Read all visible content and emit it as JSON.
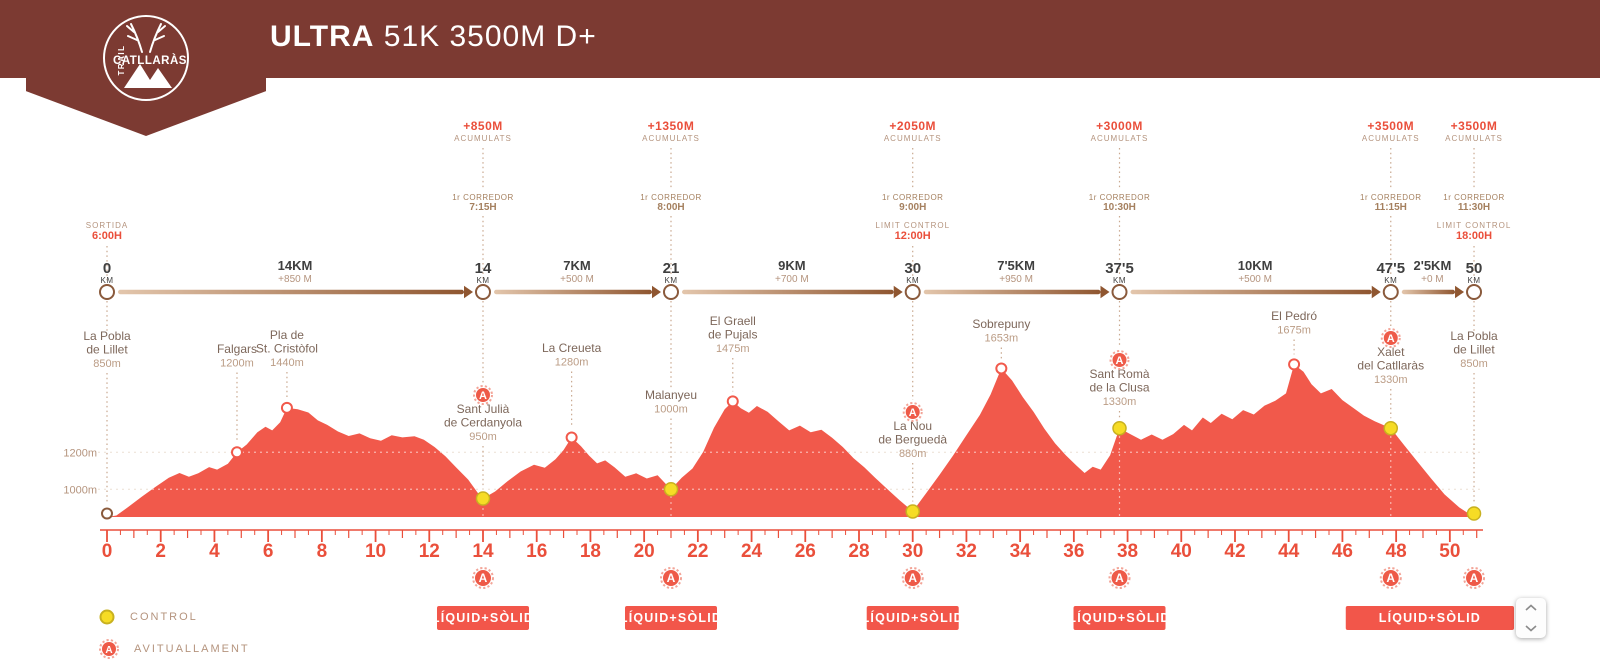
{
  "header": {
    "title_bold": "ULTRA",
    "title_rest": "51K 3500M D+",
    "logo": {
      "top": "TRAIL",
      "name": "CATLLARÀS"
    }
  },
  "icons": {
    "aid_letter": "A"
  },
  "legend": {
    "control": "CONTROL",
    "aid": "AVITUALLAMENT"
  },
  "aid_box_label": "LÍQUID+SÒLID",
  "colors": {
    "header_bg": "#7c3a32",
    "profile": "#f1594b",
    "accent": "#ea4f3b",
    "tan": "#b5947e",
    "brown": "#a5805f",
    "name_text": "#7d675a",
    "elev_text": "#bb9c85",
    "dark": "#3f3f3f",
    "dotted": "#c9a88f",
    "yellow": "#f6dc25",
    "yellow_dark": "#c8b120",
    "badge": "#ee5a48",
    "badge_ring": "#f3a497",
    "arrow_light": "#e3c6ac",
    "arrow_dark": "#8f5630",
    "circle_stroke": "#8a5a3c",
    "grid": "#ecdfd4",
    "box": "#f2564a"
  },
  "chart_data": {
    "type": "area",
    "title": "ULTRA 51K 3500M D+",
    "x_unit": "km",
    "y_unit": "m",
    "x_range": [
      0,
      51
    ],
    "ylim": [
      850,
      1700
    ],
    "xticks_interval": 2,
    "yticks": [
      {
        "label": "1200m",
        "value": 1200
      },
      {
        "label": "1000m",
        "value": 1000
      }
    ],
    "labels": {
      "acumulats": "ACUMULATS",
      "runner": "1r CORREDOR",
      "km": "KM"
    },
    "checkpoints": [
      {
        "km_label": "0",
        "km": 0,
        "control": {
          "label": "SORTIDA",
          "time": "6:00H"
        }
      },
      {
        "km_label": "14",
        "km": 14,
        "acumulated": "+850M",
        "runner_time": "7:15H"
      },
      {
        "km_label": "21",
        "km": 21,
        "acumulated": "+1350M",
        "runner_time": "8:00H"
      },
      {
        "km_label": "30",
        "km": 30,
        "acumulated": "+2050M",
        "runner_time": "9:00H",
        "control": {
          "label": "LIMIT CONTROL",
          "time": "12:00H"
        }
      },
      {
        "km_label": "37'5",
        "km": 37.7,
        "acumulated": "+3000M",
        "runner_time": "10:30H"
      },
      {
        "km_label": "47'5",
        "km": 47.8,
        "acumulated": "+3500M",
        "runner_time": "11:15H"
      },
      {
        "km_label": "50",
        "km": 50.9,
        "acumulated": "+3500M",
        "runner_time": "11:30H",
        "control": {
          "label": "LIMIT CONTROL",
          "time": "18:00H"
        }
      }
    ],
    "segments": [
      {
        "distance": "14KM",
        "gain": "+850 M"
      },
      {
        "distance": "7KM",
        "gain": "+500 M"
      },
      {
        "distance": "9KM",
        "gain": "+700 M"
      },
      {
        "distance": "7'5KM",
        "gain": "+950 M"
      },
      {
        "distance": "10KM",
        "gain": "+500 M"
      },
      {
        "distance": "2'5KM",
        "gain": "+0 M"
      }
    ],
    "named_points": [
      {
        "id": "start",
        "name": [
          "La Pobla",
          "de Lillet"
        ],
        "elevation": "850m",
        "elev_m": 850,
        "km": 0,
        "type": "start"
      },
      {
        "id": "falgars",
        "name": [
          "Falgars"
        ],
        "elevation": "1200m",
        "elev_m": 1200,
        "km": 4.84,
        "type": "peak"
      },
      {
        "id": "pla-st-cristofol",
        "name": [
          "Pla de",
          "St. Cristòfol"
        ],
        "elevation": "1440m",
        "elev_m": 1440,
        "km": 6.7,
        "type": "peak"
      },
      {
        "id": "sant-julia",
        "name": [
          "Sant Julià",
          "de Cerdanyola"
        ],
        "elevation": "950m",
        "elev_m": 950,
        "km": 14,
        "type": "control",
        "aid": true
      },
      {
        "id": "la-creueta",
        "name": [
          "La Creueta"
        ],
        "elevation": "1280m",
        "elev_m": 1280,
        "km": 17.3,
        "type": "peak"
      },
      {
        "id": "malanyeu",
        "name": [
          "Malanyeu"
        ],
        "elevation": "1000m",
        "elev_m": 1000,
        "km": 21,
        "type": "control"
      },
      {
        "id": "el-graell",
        "name": [
          "El Graell",
          "de Pujals"
        ],
        "elevation": "1475m",
        "elev_m": 1475,
        "km": 23.3,
        "type": "peak"
      },
      {
        "id": "la-nou",
        "name": [
          "La Nou",
          "de Berguedà"
        ],
        "elevation": "880m",
        "elev_m": 880,
        "km": 30,
        "type": "control",
        "aid": true
      },
      {
        "id": "sobrepuny",
        "name": [
          "Sobrepuny"
        ],
        "elevation": "1653m",
        "elev_m": 1653,
        "km": 33.3,
        "type": "peak"
      },
      {
        "id": "sant-roma",
        "name": [
          "Sant Romà",
          "de la Clusa"
        ],
        "elevation": "1330m",
        "elev_m": 1330,
        "km": 37.7,
        "type": "control",
        "aid": true
      },
      {
        "id": "el-pedro",
        "name": [
          "El Pedró"
        ],
        "elevation": "1675m",
        "elev_m": 1675,
        "km": 44.2,
        "type": "peak"
      },
      {
        "id": "xalet",
        "name": [
          "Xalet",
          "del Catllaràs"
        ],
        "elevation": "1330m",
        "elev_m": 1330,
        "km": 47.8,
        "type": "control",
        "aid": true
      },
      {
        "id": "finish",
        "name": [
          "La Pobla",
          "de Lillet"
        ],
        "elevation": "850m",
        "elev_m": 850,
        "km": 50.9,
        "type": "finish"
      }
    ],
    "aid_stations_km": [
      14,
      21,
      30,
      37.7,
      47.8,
      50.9
    ],
    "aid_boxes": [
      {
        "center_km": 14
      },
      {
        "center_km": 21
      },
      {
        "center_km": 30
      },
      {
        "center_km": 37.7
      },
      {
        "span": [
          47.8,
          50.9
        ]
      }
    ],
    "profile": [
      [
        0,
        850
      ],
      [
        0.35,
        858
      ],
      [
        0.8,
        905
      ],
      [
        1.3,
        960
      ],
      [
        1.8,
        1012
      ],
      [
        2.3,
        1062
      ],
      [
        2.7,
        1088
      ],
      [
        3.05,
        1068
      ],
      [
        3.4,
        1086
      ],
      [
        3.8,
        1120
      ],
      [
        4.1,
        1106
      ],
      [
        4.5,
        1138
      ],
      [
        4.84,
        1200
      ],
      [
        5.2,
        1242
      ],
      [
        5.6,
        1308
      ],
      [
        5.9,
        1338
      ],
      [
        6.15,
        1318
      ],
      [
        6.45,
        1362
      ],
      [
        6.7,
        1440
      ],
      [
        7.1,
        1432
      ],
      [
        7.5,
        1415
      ],
      [
        7.85,
        1372
      ],
      [
        8.2,
        1348
      ],
      [
        8.6,
        1312
      ],
      [
        9,
        1288
      ],
      [
        9.4,
        1302
      ],
      [
        9.8,
        1276
      ],
      [
        10.2,
        1262
      ],
      [
        10.6,
        1292
      ],
      [
        11,
        1280
      ],
      [
        11.45,
        1286
      ],
      [
        11.8,
        1268
      ],
      [
        12.2,
        1228
      ],
      [
        12.6,
        1178
      ],
      [
        13,
        1118
      ],
      [
        13.45,
        1052
      ],
      [
        13.8,
        982
      ],
      [
        14,
        950
      ],
      [
        14.45,
        988
      ],
      [
        14.9,
        1042
      ],
      [
        15.4,
        1096
      ],
      [
        15.9,
        1132
      ],
      [
        16.3,
        1116
      ],
      [
        16.7,
        1162
      ],
      [
        17,
        1212
      ],
      [
        17.3,
        1280
      ],
      [
        17.65,
        1232
      ],
      [
        17.95,
        1182
      ],
      [
        18.25,
        1140
      ],
      [
        18.55,
        1156
      ],
      [
        18.9,
        1118
      ],
      [
        19.3,
        1068
      ],
      [
        19.7,
        1086
      ],
      [
        20.1,
        1058
      ],
      [
        20.5,
        1076
      ],
      [
        20.8,
        1030
      ],
      [
        21,
        1000
      ],
      [
        21.4,
        1062
      ],
      [
        21.8,
        1112
      ],
      [
        22.2,
        1202
      ],
      [
        22.6,
        1332
      ],
      [
        23,
        1432
      ],
      [
        23.3,
        1475
      ],
      [
        23.6,
        1438
      ],
      [
        23.9,
        1414
      ],
      [
        24.2,
        1450
      ],
      [
        24.6,
        1418
      ],
      [
        25,
        1368
      ],
      [
        25.4,
        1318
      ],
      [
        25.8,
        1344
      ],
      [
        26.2,
        1308
      ],
      [
        26.6,
        1322
      ],
      [
        27,
        1278
      ],
      [
        27.4,
        1228
      ],
      [
        27.8,
        1168
      ],
      [
        28.2,
        1118
      ],
      [
        28.6,
        1062
      ],
      [
        29,
        1008
      ],
      [
        29.5,
        942
      ],
      [
        30,
        880
      ],
      [
        30.5,
        978
      ],
      [
        31,
        1078
      ],
      [
        31.5,
        1182
      ],
      [
        32,
        1292
      ],
      [
        32.5,
        1402
      ],
      [
        32.9,
        1512
      ],
      [
        33.3,
        1653
      ],
      [
        33.7,
        1588
      ],
      [
        34.1,
        1498
      ],
      [
        34.5,
        1418
      ],
      [
        34.9,
        1328
      ],
      [
        35.3,
        1248
      ],
      [
        35.7,
        1184
      ],
      [
        36.1,
        1128
      ],
      [
        36.4,
        1088
      ],
      [
        36.7,
        1122
      ],
      [
        37,
        1106
      ],
      [
        37.35,
        1184
      ],
      [
        37.7,
        1330
      ],
      [
        38.1,
        1298
      ],
      [
        38.5,
        1268
      ],
      [
        38.9,
        1296
      ],
      [
        39.3,
        1268
      ],
      [
        39.7,
        1298
      ],
      [
        40.1,
        1348
      ],
      [
        40.4,
        1318
      ],
      [
        40.8,
        1388
      ],
      [
        41.1,
        1358
      ],
      [
        41.5,
        1408
      ],
      [
        41.9,
        1378
      ],
      [
        42.3,
        1428
      ],
      [
        42.7,
        1404
      ],
      [
        43.1,
        1452
      ],
      [
        43.5,
        1478
      ],
      [
        43.9,
        1518
      ],
      [
        44.2,
        1675
      ],
      [
        44.55,
        1635
      ],
      [
        44.85,
        1568
      ],
      [
        45.2,
        1518
      ],
      [
        45.6,
        1542
      ],
      [
        46,
        1482
      ],
      [
        46.4,
        1440
      ],
      [
        46.8,
        1398
      ],
      [
        47.2,
        1368
      ],
      [
        47.8,
        1330
      ],
      [
        48.3,
        1238
      ],
      [
        48.8,
        1148
      ],
      [
        49.3,
        1058
      ],
      [
        49.8,
        972
      ],
      [
        50.35,
        902
      ],
      [
        50.9,
        850
      ]
    ]
  }
}
